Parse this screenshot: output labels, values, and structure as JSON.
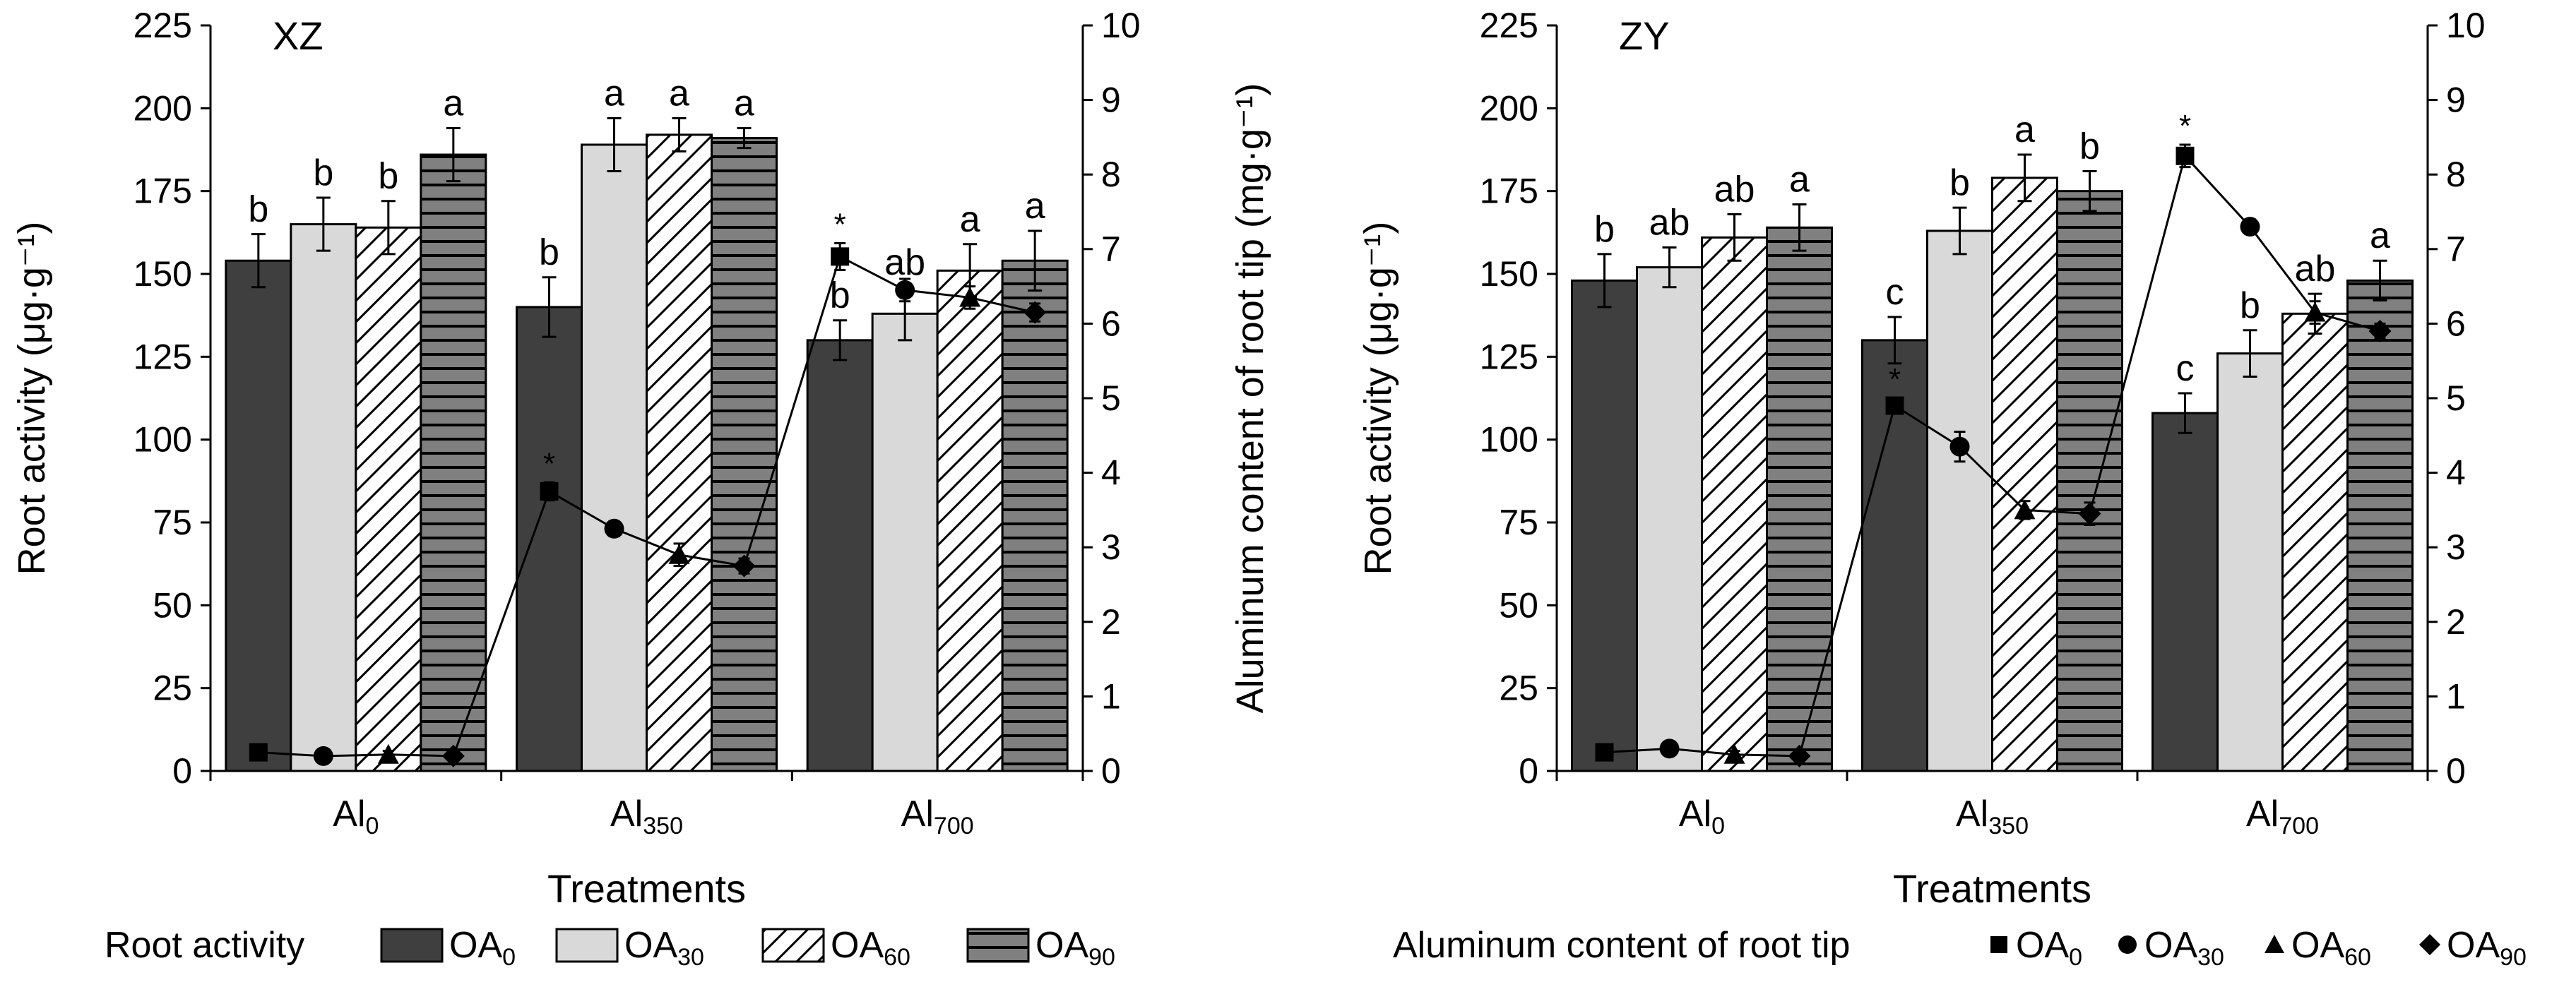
{
  "treatments_label": "Treatments",
  "root_legend": {
    "title": "Root activity",
    "items": [
      {
        "base": "OA",
        "sub": "0"
      },
      {
        "base": "OA",
        "sub": "30"
      },
      {
        "base": "OA",
        "sub": "60"
      },
      {
        "base": "OA",
        "sub": "90"
      }
    ]
  },
  "al_legend": {
    "title": "Aluminum content of root tip",
    "items": [
      {
        "base": "OA",
        "sub": "0"
      },
      {
        "base": "OA",
        "sub": "30"
      },
      {
        "base": "OA",
        "sub": "60"
      },
      {
        "base": "OA",
        "sub": "90"
      }
    ]
  },
  "colors": {
    "OA0": "#3f3f3f",
    "OA30": "#d9d9d9",
    "OA60": "#ffffff",
    "OA90": "#808080",
    "stroke": "#000000"
  },
  "chart_data": [
    {
      "type": "bar",
      "title": "XZ",
      "ylabel_left": "Root activity (μg·g⁻¹)",
      "ylabel_right": "Aluminum content of root tip (mg·g⁻¹)",
      "xlabel": "Treatments",
      "categories": [
        {
          "base": "Al",
          "sub": "0"
        },
        {
          "base": "Al",
          "sub": "350"
        },
        {
          "base": "Al",
          "sub": "700"
        }
      ],
      "ylim_left": [
        0,
        225
      ],
      "yticks_left": [
        0,
        25,
        50,
        75,
        100,
        125,
        150,
        175,
        200,
        225
      ],
      "ylim_right": [
        0,
        10
      ],
      "yticks_right": [
        0,
        1,
        2,
        3,
        4,
        5,
        6,
        7,
        8,
        9,
        10
      ],
      "bar_series": [
        {
          "key": "OA0",
          "values": [
            154,
            140,
            130
          ],
          "errors": [
            8,
            9,
            6
          ],
          "letters": [
            "b",
            "b",
            "b"
          ]
        },
        {
          "key": "OA30",
          "values": [
            165,
            189,
            138
          ],
          "errors": [
            8,
            8,
            8
          ],
          "letters": [
            "b",
            "a",
            "ab"
          ]
        },
        {
          "key": "OA60",
          "values": [
            164,
            192,
            151
          ],
          "errors": [
            8,
            5,
            8
          ],
          "letters": [
            "b",
            "a",
            "a"
          ]
        },
        {
          "key": "OA90",
          "values": [
            186,
            191,
            154
          ],
          "errors": [
            8,
            3,
            9
          ],
          "letters": [
            "a",
            "a",
            "a"
          ]
        }
      ],
      "line_series": [
        {
          "key": "OA0",
          "marker": "square",
          "values": [
            0.25,
            3.75,
            6.9
          ],
          "errors": [
            0.05,
            0.12,
            0.18
          ],
          "star": [
            false,
            true,
            true
          ]
        },
        {
          "key": "OA30",
          "marker": "circle",
          "values": [
            0.2,
            3.25,
            6.45
          ],
          "errors": [
            0.05,
            0.1,
            0.15
          ],
          "star": [
            false,
            false,
            false
          ]
        },
        {
          "key": "OA60",
          "marker": "triangle",
          "values": [
            0.22,
            2.9,
            6.35
          ],
          "errors": [
            0.05,
            0.15,
            0.15
          ],
          "star": [
            false,
            false,
            false
          ]
        },
        {
          "key": "OA90",
          "marker": "diamond",
          "values": [
            0.2,
            2.75,
            6.15
          ],
          "errors": [
            0.05,
            0.1,
            0.12
          ],
          "star": [
            false,
            false,
            false
          ]
        }
      ]
    },
    {
      "type": "bar",
      "title": "ZY",
      "ylabel_left": "Root activity (μg·g⁻¹)",
      "ylabel_right": "Aluminum content of root tip (mg·g⁻¹)",
      "xlabel": "Treatments",
      "categories": [
        {
          "base": "Al",
          "sub": "0"
        },
        {
          "base": "Al",
          "sub": "350"
        },
        {
          "base": "Al",
          "sub": "700"
        }
      ],
      "ylim_left": [
        0,
        225
      ],
      "yticks_left": [
        0,
        25,
        50,
        75,
        100,
        125,
        150,
        175,
        200,
        225
      ],
      "ylim_right": [
        0,
        10
      ],
      "yticks_right": [
        0,
        1,
        2,
        3,
        4,
        5,
        6,
        7,
        8,
        9,
        10
      ],
      "bar_series": [
        {
          "key": "OA0",
          "values": [
            148,
            130,
            108
          ],
          "errors": [
            8,
            7,
            6
          ],
          "letters": [
            "b",
            "c",
            "c"
          ]
        },
        {
          "key": "OA30",
          "values": [
            152,
            163,
            126
          ],
          "errors": [
            6,
            7,
            7
          ],
          "letters": [
            "ab",
            "b",
            "b"
          ]
        },
        {
          "key": "OA60",
          "values": [
            161,
            179,
            138
          ],
          "errors": [
            7,
            7,
            6
          ],
          "letters": [
            "ab",
            "a",
            "ab"
          ]
        },
        {
          "key": "OA90",
          "values": [
            164,
            175,
            148
          ],
          "errors": [
            7,
            6,
            6
          ],
          "letters": [
            "a",
            "b",
            "a"
          ]
        }
      ],
      "line_series": [
        {
          "key": "OA0",
          "marker": "square",
          "values": [
            0.25,
            4.9,
            8.25
          ],
          "errors": [
            0.05,
            0.1,
            0.15
          ],
          "star": [
            false,
            true,
            true
          ]
        },
        {
          "key": "OA30",
          "marker": "circle",
          "values": [
            0.3,
            4.35,
            7.3
          ],
          "errors": [
            0.05,
            0.2,
            0.1
          ],
          "star": [
            false,
            false,
            false
          ]
        },
        {
          "key": "OA60",
          "marker": "triangle",
          "values": [
            0.22,
            3.5,
            6.15
          ],
          "errors": [
            0.05,
            0.12,
            0.15
          ],
          "star": [
            false,
            false,
            false
          ]
        },
        {
          "key": "OA90",
          "marker": "diamond",
          "values": [
            0.2,
            3.45,
            5.9
          ],
          "errors": [
            0.05,
            0.15,
            0.1
          ],
          "star": [
            false,
            false,
            false
          ]
        }
      ]
    }
  ]
}
